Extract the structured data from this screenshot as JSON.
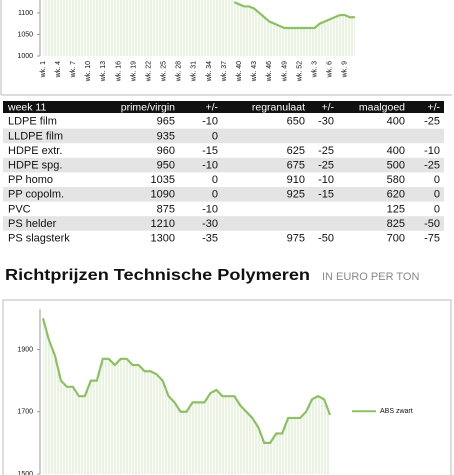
{
  "charts": [
    {
      "type": "line",
      "ylim": [
        1000,
        1130
      ],
      "yticks": [
        1000,
        1050,
        1100
      ],
      "categories": [
        "wk. 1",
        null,
        null,
        "wk. 4",
        null,
        null,
        "wk. 7",
        null,
        null,
        "wk. 10",
        null,
        null,
        "wk. 13",
        null,
        null,
        "wk. 16",
        null,
        null,
        "wk. 19",
        null,
        null,
        "wk. 22",
        null,
        null,
        "wk. 25",
        null,
        null,
        "wk. 28",
        null,
        null,
        "wk. 31",
        null,
        null,
        "wk. 34",
        null,
        null,
        "wk. 37",
        null,
        null,
        "wk. 40",
        null,
        null,
        "wk. 43",
        null,
        null,
        "wk. 46",
        null,
        null,
        "wk. 49",
        null,
        null,
        "wk. 52",
        null,
        null,
        "wk. 3",
        null,
        null,
        "wk. 6",
        null,
        null,
        "wk. 9",
        null,
        null
      ],
      "series": [
        {
          "color": "#8dc063",
          "values": [
            null,
            null,
            null,
            null,
            null,
            null,
            null,
            null,
            null,
            null,
            null,
            null,
            null,
            null,
            null,
            null,
            null,
            null,
            null,
            null,
            null,
            null,
            null,
            null,
            null,
            null,
            null,
            null,
            null,
            null,
            null,
            null,
            null,
            null,
            null,
            null,
            null,
            null,
            1125,
            1120,
            1115,
            1115,
            1110,
            1100,
            1090,
            1080,
            1075,
            1070,
            1065,
            1065,
            1065,
            1065,
            1065,
            1065,
            1065,
            1075,
            1080,
            1085,
            1090,
            1095,
            1095,
            1090,
            1090
          ]
        }
      ]
    },
    {
      "type": "line",
      "ylim": [
        1500,
        2030
      ],
      "yticks": [
        1500,
        1700,
        1900
      ],
      "legend": "right",
      "series": [
        {
          "name": "ABS zwart",
          "color": "#8dc063",
          "values": [
            2000,
            1930,
            1880,
            1800,
            1780,
            1780,
            1750,
            1750,
            1800,
            1800,
            1870,
            1870,
            1850,
            1870,
            1870,
            1850,
            1850,
            1830,
            1830,
            1820,
            1800,
            1750,
            1730,
            1700,
            1700,
            1730,
            1730,
            1730,
            1760,
            1770,
            1750,
            1750,
            1750,
            1720,
            1700,
            1680,
            1650,
            1600,
            1600,
            1630,
            1630,
            1680,
            1680,
            1680,
            1700,
            1740,
            1750,
            1740,
            1690
          ]
        }
      ]
    }
  ],
  "table": {
    "header": [
      "week 11",
      "prime/virgin",
      "+/-",
      "regranulaat",
      "+/-",
      "maalgoed",
      "+/-"
    ],
    "rows": [
      [
        "LDPE film",
        "965",
        "-10",
        "650",
        "-30",
        "400",
        "-25"
      ],
      [
        "LLDPE film",
        "935",
        "0",
        "",
        "",
        "",
        ""
      ],
      [
        "HDPE extr.",
        "960",
        "-15",
        "625",
        "-25",
        "400",
        "-10"
      ],
      [
        "HDPE spg.",
        "950",
        "-10",
        "675",
        "-25",
        "500",
        "-25"
      ],
      [
        "PP homo",
        "1035",
        "0",
        "910",
        "-10",
        "580",
        "0"
      ],
      [
        "PP copolm.",
        "1090",
        "0",
        "925",
        "-15",
        "620",
        "0"
      ],
      [
        "PVC",
        "875",
        "-10",
        "",
        "",
        "125",
        "0"
      ],
      [
        "PS helder",
        "1210",
        "-30",
        "",
        "",
        "825",
        "-50"
      ],
      [
        "PS slagsterk",
        "1300",
        "-35",
        "975",
        "-50",
        "700",
        "-75"
      ]
    ]
  },
  "section": {
    "title": "Richtprijzen Technische Polymeren",
    "subtitle": "IN EURO PER TON"
  }
}
